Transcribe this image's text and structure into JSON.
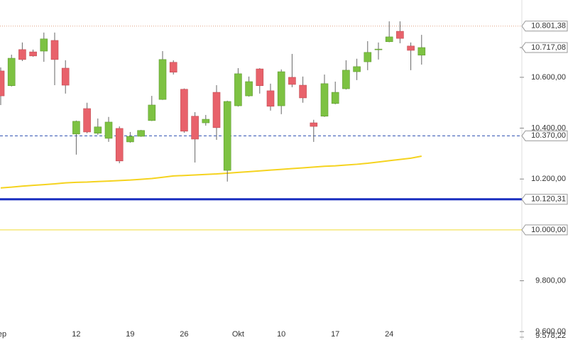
{
  "chart_data": {
    "type": "candlestick",
    "categories": [
      "ep",
      null,
      null,
      null,
      null,
      null,
      null,
      "12",
      null,
      null,
      null,
      null,
      "19",
      null,
      null,
      null,
      null,
      "26",
      null,
      null,
      null,
      null,
      "Okt",
      null,
      null,
      null,
      "10",
      null,
      null,
      null,
      null,
      "17",
      null,
      null,
      null,
      null,
      "24",
      null,
      null,
      null
    ],
    "open": [
      10625,
      10567,
      10709,
      10700,
      10703,
      10745,
      10636,
      10377,
      10477,
      10380,
      10360,
      10399,
      10346,
      10368,
      10430,
      10513,
      10659,
      10553,
      10447,
      10421,
      10541,
      10234,
      10488,
      10527,
      10633,
      10547,
      10488,
      10600,
      10569,
      10421,
      10447,
      10497,
      10555,
      10622,
      10661,
      10709,
      10740,
      10781,
      10723,
      10687
    ],
    "high": [
      10639,
      10689,
      10737,
      10709,
      10776,
      10776,
      10667,
      10430,
      10500,
      10438,
      10444,
      10407,
      10385,
      10393,
      10527,
      10703,
      10667,
      10556,
      10463,
      10452,
      10569,
      10508,
      10636,
      10603,
      10636,
      10575,
      10631,
      10692,
      10603,
      10433,
      10611,
      10583,
      10667,
      10673,
      10742,
      10737,
      10820,
      10820,
      10737,
      10767
    ],
    "low": [
      10491,
      10564,
      10664,
      10681,
      10661,
      10569,
      10536,
      10296,
      10380,
      10374,
      10346,
      10262,
      10343,
      10366,
      10428,
      10511,
      10611,
      10382,
      10265,
      10410,
      10354,
      10190,
      10485,
      10524,
      10536,
      10469,
      10455,
      10561,
      10500,
      10346,
      10444,
      10494,
      10552,
      10589,
      10628,
      10670,
      10738,
      10734,
      10628,
      10650
    ],
    "close": [
      10527,
      10675,
      10670,
      10684,
      10751,
      10670,
      10569,
      10427,
      10385,
      10405,
      10424,
      10271,
      10368,
      10391,
      10491,
      10670,
      10620,
      10388,
      10357,
      10435,
      10402,
      10505,
      10614,
      10583,
      10567,
      10486,
      10622,
      10572,
      10519,
      10407,
      10575,
      10541,
      10628,
      10642,
      10698,
      10711,
      10759,
      10753,
      10706,
      10717
    ],
    "up_color": "#7dc242",
    "down_color": "#e8626b",
    "wick_color": "#666666",
    "moving_average": {
      "color": "#f5d31f",
      "values": [
        10165,
        10168,
        10172,
        10175,
        10178,
        10181,
        10185,
        10187,
        10188,
        10190,
        10192,
        10194,
        10196,
        10199,
        10202,
        10207,
        10212,
        10214,
        10216,
        10218,
        10220,
        10223,
        10226,
        10229,
        10232,
        10235,
        10238,
        10241,
        10244,
        10247,
        10250,
        10252,
        10255,
        10258,
        10262,
        10267,
        10272,
        10277,
        10282,
        10290
      ]
    },
    "ylim": [
      9567,
      10904
    ],
    "yticks": [
      {
        "value": 10600,
        "label": "10.600,00"
      },
      {
        "value": 10400,
        "label": "10.400,00"
      },
      {
        "value": 10200,
        "label": "10.200,00"
      },
      {
        "value": 9800,
        "label": "9.800,00"
      },
      {
        "value": 9600,
        "label": "9.600,00"
      }
    ],
    "levels": [
      {
        "value": 10801.38,
        "label": "10.801,38",
        "color": "#e0a080",
        "style": "dotted",
        "width": 1
      },
      {
        "value": 10370,
        "label": "10.370,00",
        "color": "#2b4fb0",
        "style": "dashed",
        "width": 1
      },
      {
        "value": 10120.31,
        "label": "10.120,31",
        "color": "#1a2fc0",
        "style": "solid",
        "width": 3
      },
      {
        "value": 10000,
        "label": "10.000,00",
        "color": "#f0dc30",
        "style": "solid",
        "width": 1
      },
      {
        "value": 9578.22,
        "label": "9.578,22",
        "color": "#999999",
        "style": "none",
        "width": 1
      }
    ],
    "last_price": {
      "value": 10717.08,
      "label": "10.717,08"
    }
  }
}
